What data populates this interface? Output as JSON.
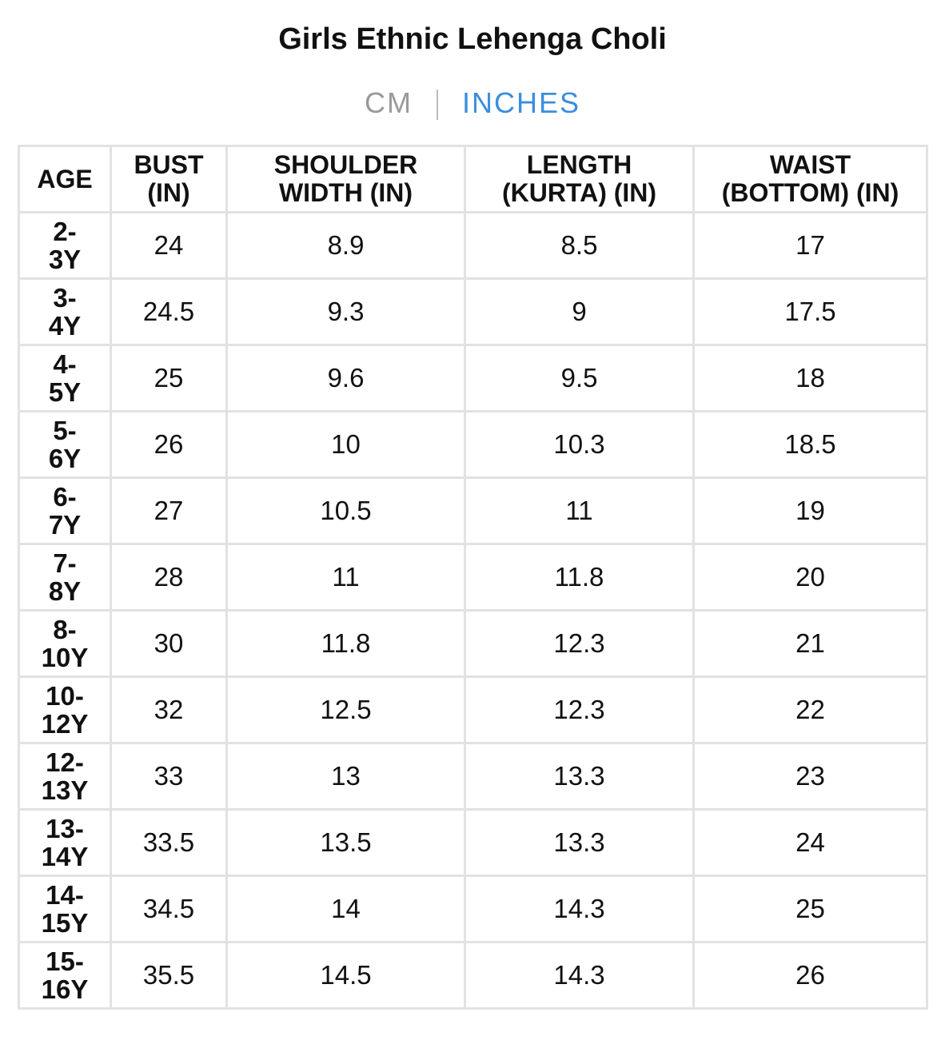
{
  "header": {
    "title": "Girls Ethnic Lehenga Choli"
  },
  "unit_toggle": {
    "options": [
      "CM",
      "INCHES"
    ],
    "selected": 1
  },
  "table": {
    "headers": [
      "AGE",
      "BUST\n(IN)",
      "SHOULDER\nWIDTH (IN)",
      "LENGTH\n(KURTA) (IN)",
      "WAIST\n(BOTTOM) (IN)"
    ],
    "rows": [
      [
        "2-3Y",
        24,
        8.9,
        8.5,
        17
      ],
      [
        "3-4Y",
        24.5,
        9.3,
        9,
        17.5
      ],
      [
        "4-5Y",
        25,
        9.6,
        9.5,
        18
      ],
      [
        "5-6Y",
        26,
        10,
        10.3,
        18.5
      ],
      [
        "6-7Y",
        27,
        10.5,
        11,
        19
      ],
      [
        "7-8Y",
        28,
        11,
        11.8,
        20
      ],
      [
        "8-10Y",
        30,
        11.8,
        12.3,
        21
      ],
      [
        "10-12Y",
        32,
        12.5,
        12.3,
        22
      ],
      [
        "12-13Y",
        33,
        13,
        13.3,
        23
      ],
      [
        "13-14Y",
        33.5,
        13.5,
        13.3,
        24
      ],
      [
        "14-15Y",
        34.5,
        14,
        14.3,
        25
      ],
      [
        "15-16Y",
        35.5,
        14.5,
        14.3,
        26
      ]
    ]
  }
}
